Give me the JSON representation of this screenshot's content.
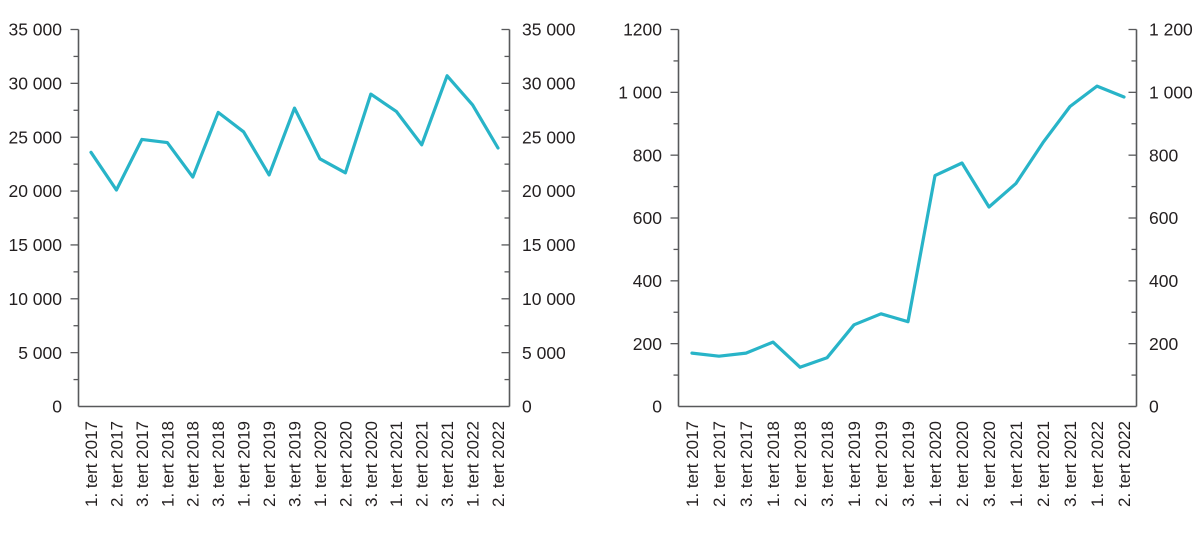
{
  "figure": {
    "background_color": "#ffffff",
    "text_color": "#231f20",
    "axis_color": "#58595b",
    "accent_color": "#28b4c8"
  },
  "chart_data": [
    {
      "type": "line",
      "name": "left-chart",
      "title": "",
      "xlabel": "",
      "ylabel": "",
      "categories": [
        "1. tert 2017",
        "2. tert 2017",
        "3. tert 2017",
        "1. tert 2018",
        "2. tert 2018",
        "3. tert 2018",
        "1. tert 2019",
        "2. tert 2019",
        "3. tert 2019",
        "1. tert 2020",
        "2. tert 2020",
        "3. tert 2020",
        "1. tert 2021",
        "2. tert 2021",
        "3. tert 2021",
        "1. tert 2022",
        "2. tert 2022"
      ],
      "series": [
        {
          "name": "left-series",
          "values": [
            23600,
            20100,
            24800,
            24500,
            21300,
            27300,
            25500,
            21500,
            27700,
            23000,
            21700,
            29000,
            27400,
            24300,
            30700,
            28000,
            24000
          ]
        }
      ],
      "ylim": [
        0,
        35000
      ],
      "y_major_step": 5000,
      "y_minor_step": 2500,
      "y_tick_labels_left": [
        "0",
        "5 000",
        "10 000",
        "15 000",
        "20 000",
        "25 000",
        "30 000",
        "35 000"
      ],
      "y_tick_labels_right": [
        "0",
        "5 000",
        "10 000",
        "15 000",
        "20 000",
        "25 000",
        "30 000",
        "35 000"
      ],
      "grid": false,
      "legend": null,
      "line_color": "#28b4c8"
    },
    {
      "type": "line",
      "name": "right-chart",
      "title": "",
      "xlabel": "",
      "ylabel": "",
      "categories": [
        "1. tert 2017",
        "2. tert 2017",
        "3. tert 2017",
        "1. tert 2018",
        "2. tert 2018",
        "3. tert 2018",
        "1. tert 2019",
        "2. tert 2019",
        "3. tert 2019",
        "1. tert 2020",
        "2. tert 2020",
        "3. tert 2020",
        "1. tert 2021",
        "2. tert 2021",
        "3. tert 2021",
        "1. tert 2022",
        "2. tert 2022"
      ],
      "series": [
        {
          "name": "right-series",
          "values": [
            170,
            160,
            170,
            205,
            125,
            155,
            260,
            295,
            270,
            735,
            775,
            635,
            710,
            840,
            955,
            1020,
            985
          ]
        }
      ],
      "ylim": [
        0,
        1200
      ],
      "y_major_step": 200,
      "y_minor_step": 100,
      "y_tick_labels_left": [
        "0",
        "200",
        "400",
        "600",
        "800",
        "1 000",
        "1200"
      ],
      "y_tick_labels_right": [
        "0",
        "200",
        "400",
        "600",
        "800",
        "1 000",
        "1 200"
      ],
      "grid": false,
      "legend": null,
      "line_color": "#28b4c8"
    }
  ]
}
